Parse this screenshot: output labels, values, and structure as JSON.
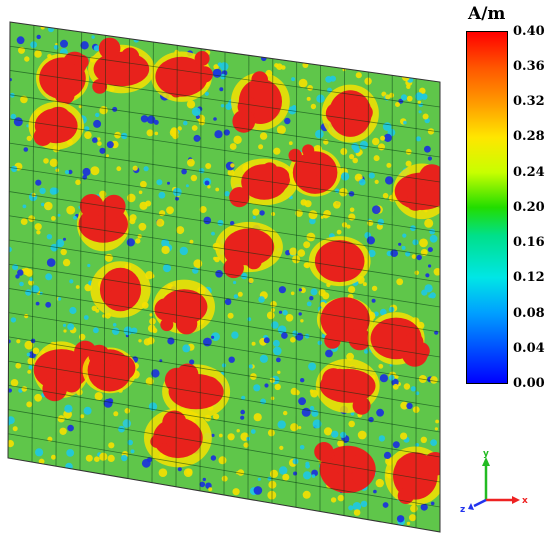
{
  "colorbar": {
    "unit_label": "A/m",
    "ticks": [
      "0.40",
      "0.36",
      "0.32",
      "0.28",
      "0.24",
      "0.20",
      "0.16",
      "0.12",
      "0.08",
      "0.04",
      "0.00"
    ],
    "min": 0.0,
    "max": 0.4
  },
  "plot": {
    "colors": {
      "background_field": "#5fc64a",
      "hot": "#e8221c",
      "warm": "#f6e000",
      "cool": "#1ec8e6",
      "cold": "#1a2ee0",
      "grid": "#003311"
    },
    "hotspot_density": 0.62,
    "grid_cells": 18
  },
  "axes": {
    "y_label": "y",
    "x_label": "x",
    "z_label": "z",
    "y_color": "#22bb22",
    "x_color": "#ee2222",
    "z_color": "#2233ee"
  }
}
